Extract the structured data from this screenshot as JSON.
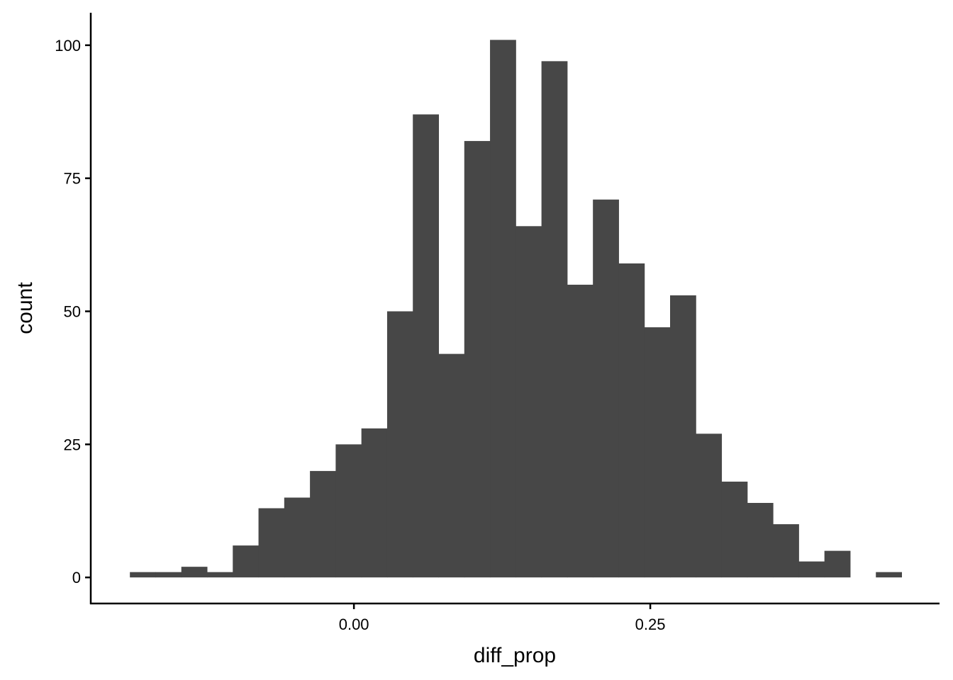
{
  "chart_data": {
    "type": "bar",
    "subtype": "histogram",
    "title": "",
    "xlabel": "diff_prop",
    "ylabel": "count",
    "xlim": [
      -0.222,
      0.494
    ],
    "ylim": [
      -4.9,
      106.1
    ],
    "bin_start": -0.189,
    "binwidth": 0.0217,
    "values": [
      1,
      1,
      2,
      1,
      6,
      13,
      15,
      20,
      25,
      28,
      50,
      87,
      42,
      82,
      101,
      66,
      97,
      55,
      71,
      59,
      47,
      53,
      27,
      18,
      14,
      10,
      3,
      5,
      0,
      1
    ],
    "x_ticks": [
      {
        "value": 0,
        "label": "0.00"
      },
      {
        "value": 0.25,
        "label": "0.25"
      }
    ],
    "y_ticks": [
      {
        "value": 0,
        "label": "0"
      },
      {
        "value": 25,
        "label": "25"
      },
      {
        "value": 50,
        "label": "50"
      },
      {
        "value": 75,
        "label": "75"
      },
      {
        "value": 100,
        "label": "100"
      }
    ],
    "grid": false,
    "legend": "none",
    "bar_color": "#474747"
  }
}
